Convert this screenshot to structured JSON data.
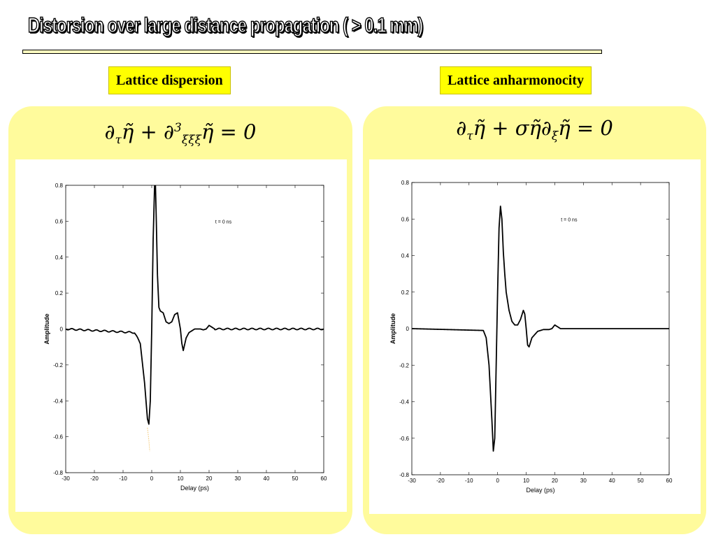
{
  "page": {
    "title": "Distorsion over large distance propagation ( > 0.1 mm)",
    "colors": {
      "panel_bg": "#fffb9c",
      "label_bg": "#ffff00",
      "curve": "#000000",
      "dotted": "#f2c46a"
    },
    "panels": [
      {
        "label": "Lattice dispersion",
        "equation": {
          "lhs": "∂",
          "sub_tau": "τ",
          "eta": "η̃",
          "plus": "+ ∂",
          "sup": "3",
          "sub_xi": "ξξξ",
          "eta2": "η̃",
          "rest": " = 0"
        }
      },
      {
        "label": "Lattice anharmonocity",
        "equation": {
          "lhs": "∂",
          "sub_tau": "τ",
          "eta": "η̃",
          "plus": "+ ση̃∂",
          "sub_xi": "ξ",
          "eta2": "η̃",
          "rest": " = 0"
        }
      }
    ]
  },
  "chart_data": [
    {
      "type": "line",
      "annotation": "t = 0 ns",
      "xlabel": "Delay (ps)",
      "ylabel": "Amplitude",
      "xlim": [
        -30,
        60
      ],
      "ylim": [
        -0.8,
        0.8
      ],
      "xticks": [
        -30,
        -20,
        -10,
        0,
        10,
        20,
        30,
        40,
        50,
        60
      ],
      "yticks": [
        0.8,
        0.6,
        0.4,
        0.2,
        0,
        -0.2,
        -0.4,
        -0.6,
        -0.8
      ],
      "grid": false,
      "ripple": 0.004,
      "x": [
        -30,
        -6,
        -4,
        -2.5,
        -1.5,
        -1,
        -0.5,
        0,
        0.5,
        1,
        1.3,
        1.6,
        2,
        2.5,
        3,
        4,
        5,
        6,
        7,
        8,
        9,
        10,
        10.5,
        11,
        12,
        13,
        15,
        17,
        18,
        19,
        20,
        21,
        22,
        25,
        30,
        60
      ],
      "y": [
        0,
        -0.02,
        -0.08,
        -0.3,
        -0.5,
        -0.53,
        -0.4,
        0,
        0.5,
        0.8,
        0.8,
        0.6,
        0.3,
        0.12,
        0.1,
        0.09,
        0.04,
        0.03,
        0.04,
        0.08,
        0.09,
        0.0,
        -0.08,
        -0.12,
        -0.05,
        -0.02,
        0.0,
        0.0,
        -0.005,
        0.0,
        0.02,
        0.01,
        0.0,
        0.0,
        0.0,
        0.0
      ],
      "dotted_x": [
        -1.5,
        -1,
        -0.7
      ],
      "dotted_y": [
        -0.55,
        -0.62,
        -0.68
      ]
    },
    {
      "type": "line",
      "annotation": "t = 0 ns",
      "xlabel": "Delay (ps)",
      "ylabel": "Amplitude",
      "xlim": [
        -30,
        60
      ],
      "ylim": [
        -0.8,
        0.8
      ],
      "xticks": [
        -30,
        -20,
        -10,
        0,
        10,
        20,
        30,
        40,
        50,
        60
      ],
      "yticks": [
        0.8,
        0.6,
        0.4,
        0.2,
        0,
        -0.2,
        -0.4,
        -0.6,
        -0.8
      ],
      "grid": false,
      "ripple": 0,
      "x": [
        -30,
        -5,
        -4,
        -3,
        -2,
        -1.5,
        -1,
        -0.5,
        0,
        0.5,
        1,
        1.5,
        2,
        2.5,
        3,
        4,
        5,
        6,
        7,
        8,
        9,
        9.5,
        10,
        10.5,
        11,
        12,
        14,
        16,
        18,
        19,
        20,
        21,
        22,
        25,
        60
      ],
      "y": [
        0,
        -0.01,
        -0.05,
        -0.2,
        -0.5,
        -0.67,
        -0.6,
        -0.2,
        0.2,
        0.55,
        0.67,
        0.6,
        0.42,
        0.3,
        0.2,
        0.1,
        0.04,
        0.02,
        0.02,
        0.05,
        0.1,
        0.08,
        0.0,
        -0.09,
        -0.1,
        -0.05,
        -0.015,
        -0.005,
        -0.005,
        0.0,
        0.02,
        0.01,
        0.0,
        0.0,
        0.0
      ]
    }
  ]
}
